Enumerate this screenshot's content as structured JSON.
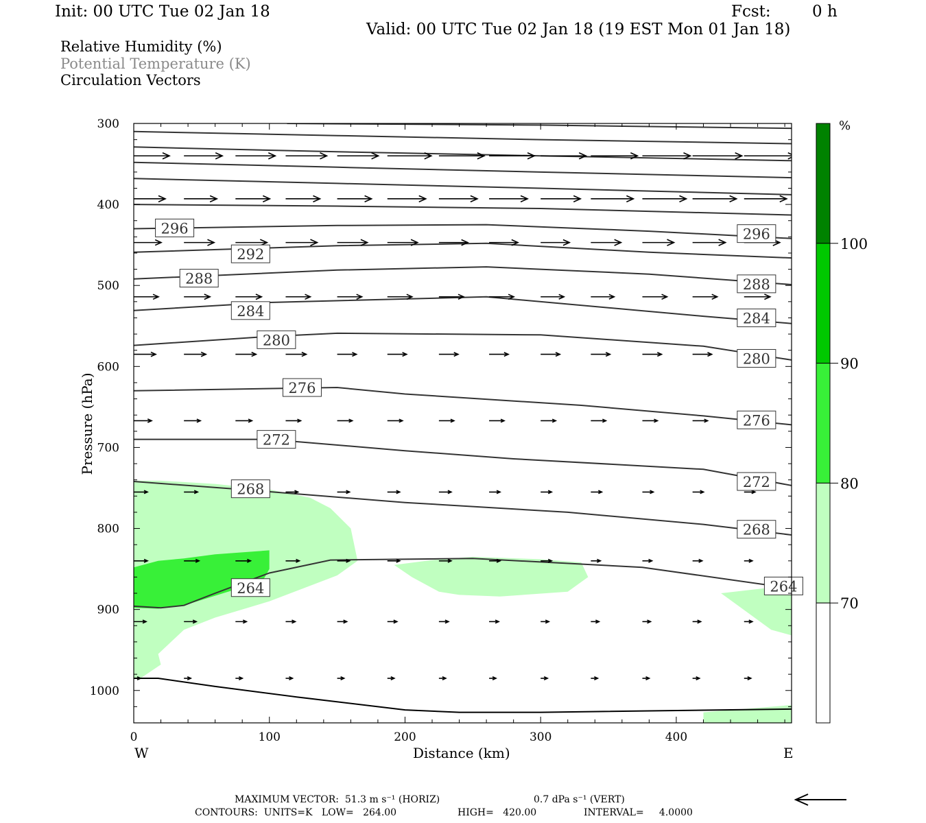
{
  "header": {
    "init": "Init: 00 UTC Tue 02 Jan 18",
    "fcst_label": "Fcst:",
    "fcst_value": "0 h",
    "valid": "Valid: 00 UTC Tue 02 Jan 18 (19 EST Mon 01 Jan 18)"
  },
  "legend": {
    "line1": "Relative Humidity (%)",
    "line2": "Potential Temperature (K)",
    "line3": "Circulation Vectors",
    "line2_color": "#8a8a8a"
  },
  "chart_data": {
    "type": "cross-section",
    "xlabel": "Distance (km)",
    "ylabel": "Pressure (hPa)",
    "xlim": [
      0,
      485
    ],
    "ylim": [
      1040,
      300
    ],
    "x_ticks": [
      0,
      100,
      200,
      300,
      400
    ],
    "y_ticks": [
      300,
      400,
      500,
      600,
      700,
      800,
      900,
      1000
    ],
    "left_end_label": "W",
    "right_end_label": "E",
    "colorbar": {
      "unit": "%",
      "levels": [
        70,
        80,
        90,
        100
      ],
      "colors": [
        "#ffffff",
        "#c0ffc0",
        "#38f038",
        "#00c800",
        "#008200"
      ]
    },
    "theta_contours": [
      {
        "value": 264,
        "points": [
          [
            0,
            896
          ],
          [
            20,
            898
          ],
          [
            37,
            895
          ],
          [
            60,
            880
          ],
          [
            100,
            855
          ],
          [
            145,
            839
          ],
          [
            250,
            837
          ],
          [
            375,
            848
          ],
          [
            485,
            874
          ]
        ],
        "labels": [
          [
            74,
            873
          ],
          [
            467,
            871
          ]
        ]
      },
      {
        "value": 268,
        "points": [
          [
            0,
            742
          ],
          [
            80,
            752
          ],
          [
            200,
            768
          ],
          [
            320,
            780
          ],
          [
            420,
            795
          ],
          [
            485,
            808
          ]
        ],
        "labels": [
          [
            74,
            751
          ],
          [
            447,
            801
          ]
        ]
      },
      {
        "value": 272,
        "points": [
          [
            0,
            690
          ],
          [
            100,
            690
          ],
          [
            200,
            704
          ],
          [
            280,
            714
          ],
          [
            420,
            727
          ],
          [
            485,
            747
          ]
        ],
        "labels": [
          [
            93,
            690
          ],
          [
            447,
            742
          ]
        ]
      },
      {
        "value": 276,
        "points": [
          [
            0,
            630
          ],
          [
            150,
            626
          ],
          [
            200,
            634
          ],
          [
            330,
            648
          ],
          [
            420,
            661
          ],
          [
            485,
            672
          ]
        ],
        "labels": [
          [
            112,
            626
          ],
          [
            447,
            666
          ]
        ]
      },
      {
        "value": 280,
        "points": [
          [
            0,
            574
          ],
          [
            100,
            563
          ],
          [
            150,
            559
          ],
          [
            300,
            561
          ],
          [
            420,
            575
          ],
          [
            485,
            592
          ]
        ],
        "labels": [
          [
            93,
            567
          ],
          [
            447,
            590
          ]
        ]
      },
      {
        "value": 284,
        "points": [
          [
            0,
            531
          ],
          [
            100,
            521
          ],
          [
            260,
            514
          ],
          [
            420,
            538
          ],
          [
            485,
            547
          ]
        ],
        "labels": [
          [
            74,
            531
          ],
          [
            447,
            540
          ]
        ]
      },
      {
        "value": 288,
        "points": [
          [
            0,
            492
          ],
          [
            150,
            481
          ],
          [
            260,
            477
          ],
          [
            380,
            486
          ],
          [
            485,
            499
          ]
        ],
        "labels": [
          [
            36,
            491
          ],
          [
            447,
            498
          ]
        ]
      },
      {
        "value": 292,
        "points": [
          [
            0,
            459
          ],
          [
            150,
            451
          ],
          [
            260,
            448
          ],
          [
            380,
            459
          ],
          [
            485,
            466
          ]
        ],
        "labels": [
          [
            74,
            461
          ]
        ]
      },
      {
        "value": 296,
        "points": [
          [
            0,
            430
          ],
          [
            150,
            426
          ],
          [
            260,
            425
          ],
          [
            380,
            433
          ],
          [
            485,
            442
          ]
        ],
        "labels": [
          [
            18,
            429
          ],
          [
            447,
            436
          ]
        ]
      },
      {
        "value": 300,
        "points": [
          [
            0,
            400
          ],
          [
            150,
            402
          ],
          [
            300,
            405
          ],
          [
            485,
            413
          ]
        ],
        "labels": []
      },
      {
        "value": 304,
        "points": [
          [
            0,
            368
          ],
          [
            150,
            374
          ],
          [
            300,
            380
          ],
          [
            485,
            388
          ]
        ],
        "labels": []
      },
      {
        "value": 308,
        "points": [
          [
            0,
            348
          ],
          [
            150,
            354
          ],
          [
            300,
            360
          ],
          [
            485,
            367
          ]
        ],
        "labels": []
      },
      {
        "value": 312,
        "points": [
          [
            0,
            329
          ],
          [
            150,
            335
          ],
          [
            300,
            340
          ],
          [
            485,
            346
          ]
        ],
        "labels": []
      },
      {
        "value": 316,
        "points": [
          [
            0,
            310
          ],
          [
            150,
            315
          ],
          [
            300,
            320
          ],
          [
            485,
            325
          ]
        ],
        "labels": []
      },
      {
        "value": 320,
        "points": [
          [
            113,
            300
          ],
          [
            300,
            302
          ],
          [
            485,
            306
          ]
        ],
        "labels": []
      }
    ],
    "surface_line": [
      [
        0,
        985
      ],
      [
        18,
        985
      ],
      [
        60,
        995
      ],
      [
        120,
        1008
      ],
      [
        200,
        1024
      ],
      [
        240,
        1027
      ],
      [
        300,
        1027
      ],
      [
        485,
        1023
      ]
    ],
    "rh_regions": [
      {
        "level": 70,
        "points": [
          [
            0,
            741
          ],
          [
            20,
            741
          ],
          [
            60,
            745
          ],
          [
            100,
            752
          ],
          [
            130,
            762
          ],
          [
            145,
            775
          ],
          [
            160,
            800
          ],
          [
            165,
            840
          ],
          [
            150,
            858
          ],
          [
            100,
            890
          ],
          [
            60,
            910
          ],
          [
            37,
            925
          ],
          [
            18,
            955
          ],
          [
            20,
            968
          ],
          [
            5,
            985
          ],
          [
            0,
            985
          ]
        ]
      },
      {
        "level": 70,
        "points": [
          [
            192,
            845
          ],
          [
            220,
            839
          ],
          [
            250,
            835
          ],
          [
            300,
            838
          ],
          [
            330,
            842
          ],
          [
            335,
            860
          ],
          [
            320,
            878
          ],
          [
            270,
            884
          ],
          [
            240,
            882
          ],
          [
            225,
            878
          ],
          [
            205,
            860
          ]
        ]
      },
      {
        "level": 70,
        "points": [
          [
            433,
            880
          ],
          [
            485,
            870
          ],
          [
            485,
            932
          ],
          [
            470,
            925
          ]
        ]
      },
      {
        "level": 70,
        "points": [
          [
            420,
            1027
          ],
          [
            485,
            1018
          ],
          [
            485,
            1040
          ],
          [
            420,
            1040
          ]
        ]
      },
      {
        "level": 80,
        "points": [
          [
            0,
            848
          ],
          [
            18,
            840
          ],
          [
            37,
            837
          ],
          [
            60,
            832
          ],
          [
            100,
            827
          ],
          [
            100,
            850
          ],
          [
            95,
            865
          ],
          [
            60,
            883
          ],
          [
            37,
            895
          ],
          [
            18,
            899
          ],
          [
            0,
            898
          ]
        ]
      }
    ],
    "vectors": [
      {
        "p": 340,
        "x": [
          0,
          37,
          75,
          112,
          150,
          187,
          225,
          262,
          300,
          337,
          375,
          412,
          450
        ],
        "len": [
          52,
          56,
          58,
          60,
          60,
          64,
          66,
          66,
          66,
          68,
          70,
          72,
          74
        ]
      },
      {
        "p": 393,
        "x": [
          0,
          37,
          75,
          112,
          150,
          187,
          225,
          262,
          300,
          337,
          375,
          412,
          450
        ],
        "len": [
          46,
          48,
          50,
          50,
          50,
          56,
          56,
          56,
          58,
          62,
          64,
          64,
          62
        ]
      },
      {
        "p": 447,
        "x": [
          0,
          37,
          75,
          112,
          150,
          187,
          225,
          262,
          300,
          337,
          375,
          412,
          450
        ],
        "len": [
          40,
          44,
          46,
          46,
          44,
          44,
          42,
          42,
          42,
          44,
          46,
          48,
          52
        ]
      },
      {
        "p": 514,
        "x": [
          0,
          37,
          75,
          112,
          150,
          187,
          225,
          262,
          300,
          337,
          375,
          412,
          450
        ],
        "len": [
          36,
          38,
          38,
          36,
          36,
          36,
          36,
          36,
          34,
          34,
          36,
          36,
          38
        ]
      },
      {
        "p": 585,
        "x": [
          0,
          37,
          75,
          112,
          150,
          187,
          225,
          262,
          300,
          337,
          375,
          412,
          450
        ],
        "len": [
          32,
          32,
          30,
          30,
          28,
          28,
          28,
          28,
          28,
          28,
          28,
          28,
          28
        ]
      },
      {
        "p": 667,
        "x": [
          0,
          37,
          75,
          112,
          150,
          187,
          225,
          262,
          300,
          337,
          375,
          412,
          450
        ],
        "len": [
          26,
          24,
          24,
          22,
          22,
          22,
          22,
          22,
          22,
          22,
          22,
          22,
          22
        ]
      },
      {
        "p": 755,
        "x": [
          0,
          37,
          75,
          112,
          150,
          187,
          225,
          262,
          300,
          337,
          375,
          412,
          450
        ],
        "len": [
          20,
          20,
          20,
          18,
          18,
          18,
          18,
          16,
          16,
          16,
          16,
          16,
          16
        ]
      },
      {
        "p": 840,
        "x": [
          0,
          37,
          75,
          112,
          150,
          187,
          225,
          262,
          300,
          337,
          375,
          412,
          450
        ],
        "len": [
          20,
          22,
          22,
          20,
          18,
          18,
          18,
          16,
          16,
          14,
          14,
          14,
          12
        ]
      },
      {
        "p": 915,
        "x": [
          0,
          37,
          75,
          112,
          150,
          187,
          225,
          262,
          300,
          337,
          375,
          412,
          450
        ],
        "len": [
          18,
          18,
          16,
          14,
          14,
          14,
          14,
          14,
          12,
          12,
          12,
          12,
          12
        ]
      },
      {
        "p": 985,
        "x": [
          0,
          37,
          75,
          112,
          150,
          187,
          225,
          262,
          300,
          337,
          375,
          412,
          450
        ],
        "len": [
          10,
          10,
          10,
          10,
          10,
          10,
          10,
          10,
          10,
          10,
          10,
          10,
          10
        ]
      }
    ]
  },
  "footer": {
    "max_vector": "MAXIMUM VECTOR:  51.3 m s⁻¹ (HORIZ)",
    "max_vector_vert": "0.7 dPa s⁻¹ (VERT)",
    "contours": "CONTOURS:  UNITS=K   LOW=   264.00",
    "high": "HIGH=   420.00",
    "interval": "INTERVAL=     4.0000"
  }
}
